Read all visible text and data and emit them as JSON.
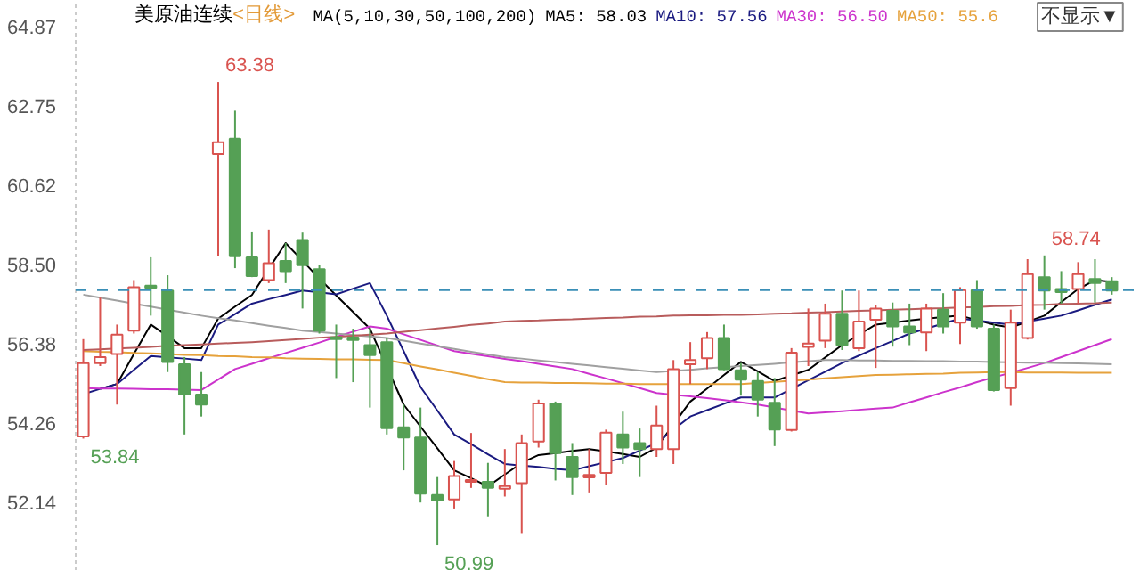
{
  "chart_data": {
    "type": "candlestick",
    "title": "美原油连续",
    "subtitle": "<日线>",
    "legend_title": "MA(5,10,30,50,100,200)",
    "tick_labels": "y",
    "categories": [
      null,
      null,
      null,
      null,
      null,
      null,
      null,
      null,
      null,
      null,
      null,
      null,
      null,
      null,
      null,
      null,
      null,
      null,
      null,
      null,
      null,
      null,
      null,
      null,
      null,
      null,
      null,
      null,
      null,
      null,
      null,
      null,
      null,
      null,
      null,
      null,
      null,
      null,
      null,
      null,
      null,
      null,
      null,
      null,
      null,
      null,
      null,
      null,
      null,
      null,
      null,
      null,
      null,
      null,
      null,
      null,
      null,
      null,
      null,
      null,
      null,
      null
    ],
    "ylim": [
      50.3,
      65.55
    ],
    "yticks": [
      {
        "value": 52.14,
        "label": "52.14"
      },
      {
        "value": 54.26,
        "label": "54.26"
      },
      {
        "value": 56.38,
        "label": "56.38"
      },
      {
        "value": 58.5,
        "label": "58.50"
      },
      {
        "value": 60.62,
        "label": "60.62"
      },
      {
        "value": 62.75,
        "label": "62.75"
      },
      {
        "value": 64.87,
        "label": "64.87"
      }
    ],
    "ohlc": [
      [
        53.9,
        56.5,
        53.84,
        55.86
      ],
      [
        55.86,
        57.61,
        55.78,
        56.02
      ],
      [
        56.1,
        56.89,
        54.75,
        56.62
      ],
      [
        56.73,
        58.08,
        56.65,
        57.89
      ],
      [
        57.93,
        58.69,
        57.13,
        57.87
      ],
      [
        57.8,
        58.21,
        55.62,
        55.89
      ],
      [
        55.83,
        56.02,
        53.95,
        55.02
      ],
      [
        55.02,
        55.62,
        54.43,
        54.75
      ],
      [
        61.45,
        63.38,
        58.72,
        61.77
      ],
      [
        61.86,
        62.61,
        58.4,
        58.72
      ],
      [
        58.69,
        59.38,
        58.16,
        58.19
      ],
      [
        58.08,
        59.43,
        58.0,
        58.53
      ],
      [
        58.59,
        59.07,
        58.0,
        58.32
      ],
      [
        59.15,
        59.35,
        57.32,
        58.48
      ],
      [
        58.37,
        58.48,
        56.65,
        56.73
      ],
      [
        56.55,
        56.89,
        55.46,
        56.5
      ],
      [
        56.52,
        56.78,
        55.35,
        56.5
      ],
      [
        56.34,
        56.81,
        54.67,
        56.07
      ],
      [
        56.42,
        56.53,
        53.95,
        54.12
      ],
      [
        54.14,
        54.75,
        52.99,
        53.87
      ],
      [
        53.87,
        54.67,
        52.13,
        52.37
      ],
      [
        52.33,
        52.81,
        50.99,
        52.18
      ],
      [
        52.21,
        53.24,
        51.97,
        52.84
      ],
      [
        52.68,
        53.99,
        52.52,
        52.73
      ],
      [
        52.68,
        53.19,
        51.76,
        52.52
      ],
      [
        52.52,
        53.56,
        52.29,
        52.55
      ],
      [
        52.65,
        53.95,
        51.29,
        53.72
      ],
      [
        53.76,
        54.88,
        53.6,
        54.78
      ],
      [
        54.78,
        54.83,
        52.72,
        53.45
      ],
      [
        53.35,
        53.72,
        52.33,
        52.81
      ],
      [
        52.82,
        53.56,
        52.4,
        52.85
      ],
      [
        52.92,
        54.08,
        52.6,
        54.0
      ],
      [
        53.95,
        54.56,
        53.16,
        53.6
      ],
      [
        53.72,
        54.11,
        52.81,
        53.56
      ],
      [
        53.56,
        54.72,
        53.35,
        54.19
      ],
      [
        53.56,
        55.94,
        53.16,
        55.7
      ],
      [
        55.83,
        56.42,
        55.3,
        55.94
      ],
      [
        55.99,
        56.69,
        55.7,
        56.53
      ],
      [
        56.53,
        56.89,
        55.67,
        55.7
      ],
      [
        55.67,
        55.86,
        54.99,
        55.42
      ],
      [
        55.38,
        55.62,
        54.43,
        54.88
      ],
      [
        54.8,
        55.46,
        53.64,
        54.08
      ],
      [
        54.07,
        56.26,
        54.03,
        56.14
      ],
      [
        56.29,
        57.32,
        55.78,
        56.38
      ],
      [
        56.46,
        57.45,
        56.26,
        57.18
      ],
      [
        57.18,
        57.8,
        56.21,
        56.34
      ],
      [
        56.26,
        57.8,
        56.18,
        56.97
      ],
      [
        57.02,
        57.42,
        55.73,
        57.32
      ],
      [
        57.26,
        57.48,
        56.3,
        56.84
      ],
      [
        56.84,
        57.45,
        56.34,
        56.68
      ],
      [
        56.68,
        57.45,
        56.18,
        57.32
      ],
      [
        57.29,
        57.73,
        56.65,
        56.84
      ],
      [
        56.94,
        57.89,
        56.37,
        57.81
      ],
      [
        57.81,
        58.08,
        56.78,
        56.84
      ],
      [
        56.78,
        56.89,
        55.1,
        55.14
      ],
      [
        55.19,
        57.29,
        54.72,
        56.94
      ],
      [
        56.53,
        58.64,
        56.49,
        58.24
      ],
      [
        58.16,
        58.74,
        57.29,
        57.8
      ],
      [
        57.82,
        58.32,
        57.45,
        57.78
      ],
      [
        57.84,
        58.56,
        57.45,
        58.24
      ],
      [
        58.11,
        58.64,
        57.48,
        58.0
      ],
      [
        58.05,
        58.16,
        57.69,
        57.8
      ]
    ],
    "series": [
      {
        "name": "MA5: 58.03",
        "color": "#000000",
        "type": "line",
        "values": [
          null,
          55.17,
          55.3,
          56.1,
          56.89,
          56.58,
          56.26,
          56.26,
          57.05,
          57.37,
          57.68,
          58.38,
          59.07,
          58.6,
          58.12,
          57.67,
          57.23,
          56.78,
          null,
          54.75,
          54.16,
          53.58,
          52.99,
          52.78,
          52.56,
          52.88,
          53.19,
          53.4,
          53.45,
          53.51,
          53.56,
          53.5,
          53.43,
          53.35,
          53.6,
          null,
          54.83,
          55.18,
          55.54,
          55.89,
          55.64,
          55.38,
          null,
          55.68,
          56.01,
          56.34,
          56.62,
          56.89,
          56.94,
          57.0,
          57.05,
          57.09,
          57.13,
          57.01,
          56.89,
          56.81,
          56.97,
          57.13,
          57.49,
          57.84,
          58.08,
          58.03
        ]
      },
      {
        "name": "MA10: 57.56",
        "color": "#1a1a80",
        "type": "line",
        "values": [
          55.03,
          55.17,
          55.3,
          55.68,
          56.05,
          56.01,
          55.98,
          55.94,
          56.89,
          57.17,
          57.45,
          57.57,
          57.68,
          57.8,
          57.75,
          57.7,
          57.85,
          58.0,
          57.13,
          56.18,
          55.22,
          54.59,
          53.95,
          53.69,
          53.42,
          53.16,
          53.12,
          53.08,
          53.03,
          52.99,
          53.1,
          53.21,
          53.32,
          53.52,
          53.72,
          54.08,
          54.43,
          54.6,
          54.77,
          54.94,
          54.94,
          54.94,
          55.17,
          55.4,
          55.63,
          55.86,
          56.06,
          56.26,
          56.45,
          56.65,
          56.78,
          56.92,
          57.05,
          57.0,
          56.94,
          56.89,
          56.97,
          57.05,
          57.13,
          57.27,
          57.42,
          57.56
        ]
      },
      {
        "name": "MA30: 56.50",
        "color": "#cc33cc",
        "type": "line",
        "values": [
          55.19,
          55.18,
          55.18,
          55.17,
          55.16,
          55.16,
          55.15,
          55.14,
          55.42,
          55.7,
          55.84,
          55.99,
          56.13,
          56.27,
          56.41,
          56.56,
          56.7,
          56.84,
          56.78,
          56.63,
          56.48,
          56.33,
          56.18,
          56.11,
          56.04,
          55.97,
          55.91,
          55.84,
          55.77,
          55.7,
          55.57,
          55.45,
          55.32,
          55.19,
          55.06,
          55.01,
          54.97,
          54.92,
          54.87,
          54.81,
          54.75,
          54.67,
          54.59,
          54.51,
          54.54,
          54.57,
          54.61,
          54.64,
          54.67,
          54.81,
          54.94,
          55.08,
          55.21,
          55.35,
          55.48,
          55.6,
          55.73,
          55.86,
          56.02,
          56.18,
          56.34,
          56.5
        ]
      },
      {
        "name": "MA50: 55.6",
        "color": "#e6a23c",
        "type": "line",
        "values": [
          56.18,
          56.16,
          56.15,
          56.13,
          56.12,
          56.1,
          56.08,
          56.07,
          56.05,
          56.04,
          56.02,
          56.01,
          55.99,
          55.98,
          55.97,
          55.96,
          55.96,
          55.95,
          55.94,
          55.86,
          55.77,
          55.69,
          55.6,
          55.52,
          55.43,
          55.35,
          55.34,
          55.34,
          55.33,
          55.33,
          55.32,
          55.31,
          55.31,
          55.3,
          55.3,
          55.3,
          55.3,
          55.3,
          55.3,
          55.3,
          55.33,
          55.36,
          55.39,
          55.42,
          55.45,
          55.48,
          55.51,
          55.54,
          55.55,
          55.56,
          55.57,
          55.58,
          55.6,
          55.61,
          55.62,
          55.62,
          55.61,
          55.61,
          55.61,
          55.6,
          55.6,
          55.6
        ]
      },
      {
        "color": "#a0a0a0",
        "type": "line",
        "values": [
          57.69,
          57.61,
          57.53,
          57.45,
          57.37,
          57.29,
          57.21,
          57.13,
          57.06,
          57.0,
          56.93,
          56.86,
          56.8,
          56.73,
          56.69,
          56.65,
          56.61,
          56.57,
          56.53,
          56.46,
          56.38,
          56.31,
          56.24,
          56.16,
          56.09,
          56.02,
          55.98,
          55.93,
          55.89,
          55.84,
          55.8,
          55.75,
          55.71,
          55.66,
          55.62,
          55.65,
          55.68,
          55.72,
          55.75,
          55.78,
          55.81,
          55.84,
          55.88,
          55.91,
          55.94,
          55.94,
          55.93,
          55.93,
          55.92,
          55.92,
          55.91,
          55.91,
          55.9,
          55.9,
          55.89,
          55.88,
          55.87,
          55.87,
          55.86,
          55.85,
          55.84,
          55.83
        ]
      },
      {
        "color": "#b85c5c",
        "type": "line",
        "values": [
          56.21,
          56.23,
          56.25,
          56.27,
          56.29,
          56.32,
          56.34,
          56.36,
          56.38,
          56.4,
          56.42,
          56.45,
          56.48,
          56.51,
          56.54,
          56.56,
          56.59,
          56.62,
          56.65,
          56.7,
          56.74,
          56.79,
          56.83,
          56.88,
          56.92,
          56.97,
          56.99,
          57.0,
          57.02,
          57.03,
          57.05,
          57.07,
          57.08,
          57.1,
          57.11,
          57.13,
          57.14,
          57.14,
          57.15,
          57.15,
          57.16,
          57.18,
          57.19,
          57.21,
          57.22,
          57.24,
          57.26,
          57.27,
          57.29,
          57.3,
          57.32,
          57.33,
          57.35,
          57.36,
          57.38,
          57.39,
          57.41,
          57.42,
          57.44,
          57.45,
          57.46,
          57.48
        ]
      }
    ],
    "ref_lines": [
      {
        "axis": "y",
        "value": 57.81,
        "color": "#3a8fb7",
        "line_style": "dashed"
      }
    ],
    "annotations": [
      "63.38",
      "53.84",
      "50.99",
      "58.74",
      "不显示▼"
    ]
  }
}
